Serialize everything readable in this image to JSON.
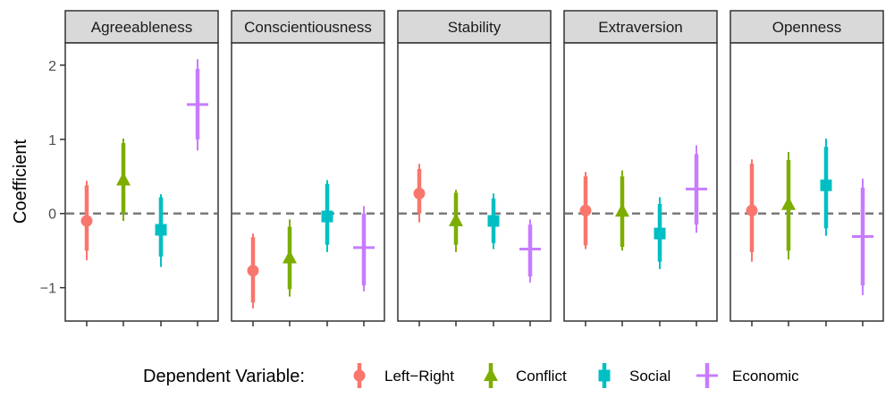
{
  "chart_data": {
    "type": "scatter",
    "subtype": "coefficient-plot-faceted",
    "ylabel": "Coefficient",
    "ylim": [
      -1.45,
      2.3
    ],
    "yticks": [
      2,
      1,
      0,
      -1
    ],
    "ytick_labels": [
      "2",
      "1",
      "0",
      "−1"
    ],
    "reference_line": 0,
    "grid": false,
    "facets": [
      "Agreeableness",
      "Conscientiousness",
      "Stability",
      "Extraversion",
      "Openness"
    ],
    "legend": {
      "title": "Dependent Variable:",
      "placement": "bottom",
      "entries": [
        {
          "name": "Left−Right",
          "color": "#F8766D",
          "shape": "circle"
        },
        {
          "name": "Conflict",
          "color": "#7CAE00",
          "shape": "triangle"
        },
        {
          "name": "Social",
          "color": "#00BFC4",
          "shape": "square"
        },
        {
          "name": "Economic",
          "color": "#C77CFF",
          "shape": "plus"
        }
      ]
    },
    "series": [
      {
        "name": "Left−Right",
        "estimates": [
          -0.1,
          -0.77,
          0.27,
          0.04,
          0.04
        ],
        "ci_inner": [
          [
            -0.5,
            0.38
          ],
          [
            -1.2,
            -0.32
          ],
          [
            0.0,
            0.6
          ],
          [
            -0.43,
            0.5
          ],
          [
            -0.52,
            0.67
          ]
        ],
        "ci_outer": [
          [
            -0.63,
            0.44
          ],
          [
            -1.28,
            -0.27
          ],
          [
            -0.12,
            0.67
          ],
          [
            -0.48,
            0.56
          ],
          [
            -0.65,
            0.73
          ]
        ]
      },
      {
        "name": "Conflict",
        "estimates": [
          0.45,
          -0.6,
          -0.1,
          0.03,
          0.12
        ],
        "ci_inner": [
          [
            0.0,
            0.95
          ],
          [
            -1.02,
            -0.18
          ],
          [
            -0.42,
            0.28
          ],
          [
            -0.45,
            0.5
          ],
          [
            -0.5,
            0.72
          ]
        ],
        "ci_outer": [
          [
            -0.1,
            1.01
          ],
          [
            -1.12,
            -0.08
          ],
          [
            -0.52,
            0.32
          ],
          [
            -0.5,
            0.58
          ],
          [
            -0.62,
            0.83
          ]
        ]
      },
      {
        "name": "Social",
        "estimates": [
          -0.22,
          -0.04,
          -0.1,
          -0.27,
          0.38
        ],
        "ci_inner": [
          [
            -0.58,
            0.22
          ],
          [
            -0.42,
            0.4
          ],
          [
            -0.4,
            0.2
          ],
          [
            -0.65,
            0.13
          ],
          [
            -0.2,
            0.9
          ]
        ],
        "ci_outer": [
          [
            -0.72,
            0.26
          ],
          [
            -0.52,
            0.45
          ],
          [
            -0.48,
            0.27
          ],
          [
            -0.75,
            0.22
          ],
          [
            -0.3,
            1.01
          ]
        ]
      },
      {
        "name": "Economic",
        "estimates": [
          1.47,
          -0.46,
          -0.48,
          0.33,
          -0.31
        ],
        "ci_inner": [
          [
            1.0,
            1.95
          ],
          [
            -0.97,
            0.0
          ],
          [
            -0.85,
            -0.15
          ],
          [
            -0.15,
            0.8
          ],
          [
            -0.97,
            0.35
          ]
        ],
        "ci_outer": [
          [
            0.85,
            2.08
          ],
          [
            -1.05,
            0.1
          ],
          [
            -0.93,
            -0.08
          ],
          [
            -0.26,
            0.92
          ],
          [
            -1.1,
            0.47
          ]
        ]
      }
    ]
  }
}
